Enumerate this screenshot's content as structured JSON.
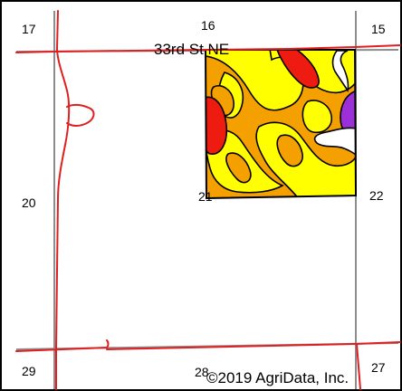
{
  "map": {
    "road_label": "33rd St NE",
    "copyright": "©2019 AgriData, Inc.",
    "sections": {
      "s17": "17",
      "s16": "16",
      "s15": "15",
      "s20": "20",
      "s21": "21",
      "s22": "22",
      "s29": "29",
      "s28": "28",
      "s27": "27"
    },
    "colors": {
      "road": "#e02020",
      "section_line": "#8c8c8c",
      "soil_yellow": "#ffff00",
      "soil_orange": "#f4a000",
      "soil_red": "#ee1c10",
      "soil_purple": "#9b30d9",
      "water_white": "#ffffff"
    }
  }
}
